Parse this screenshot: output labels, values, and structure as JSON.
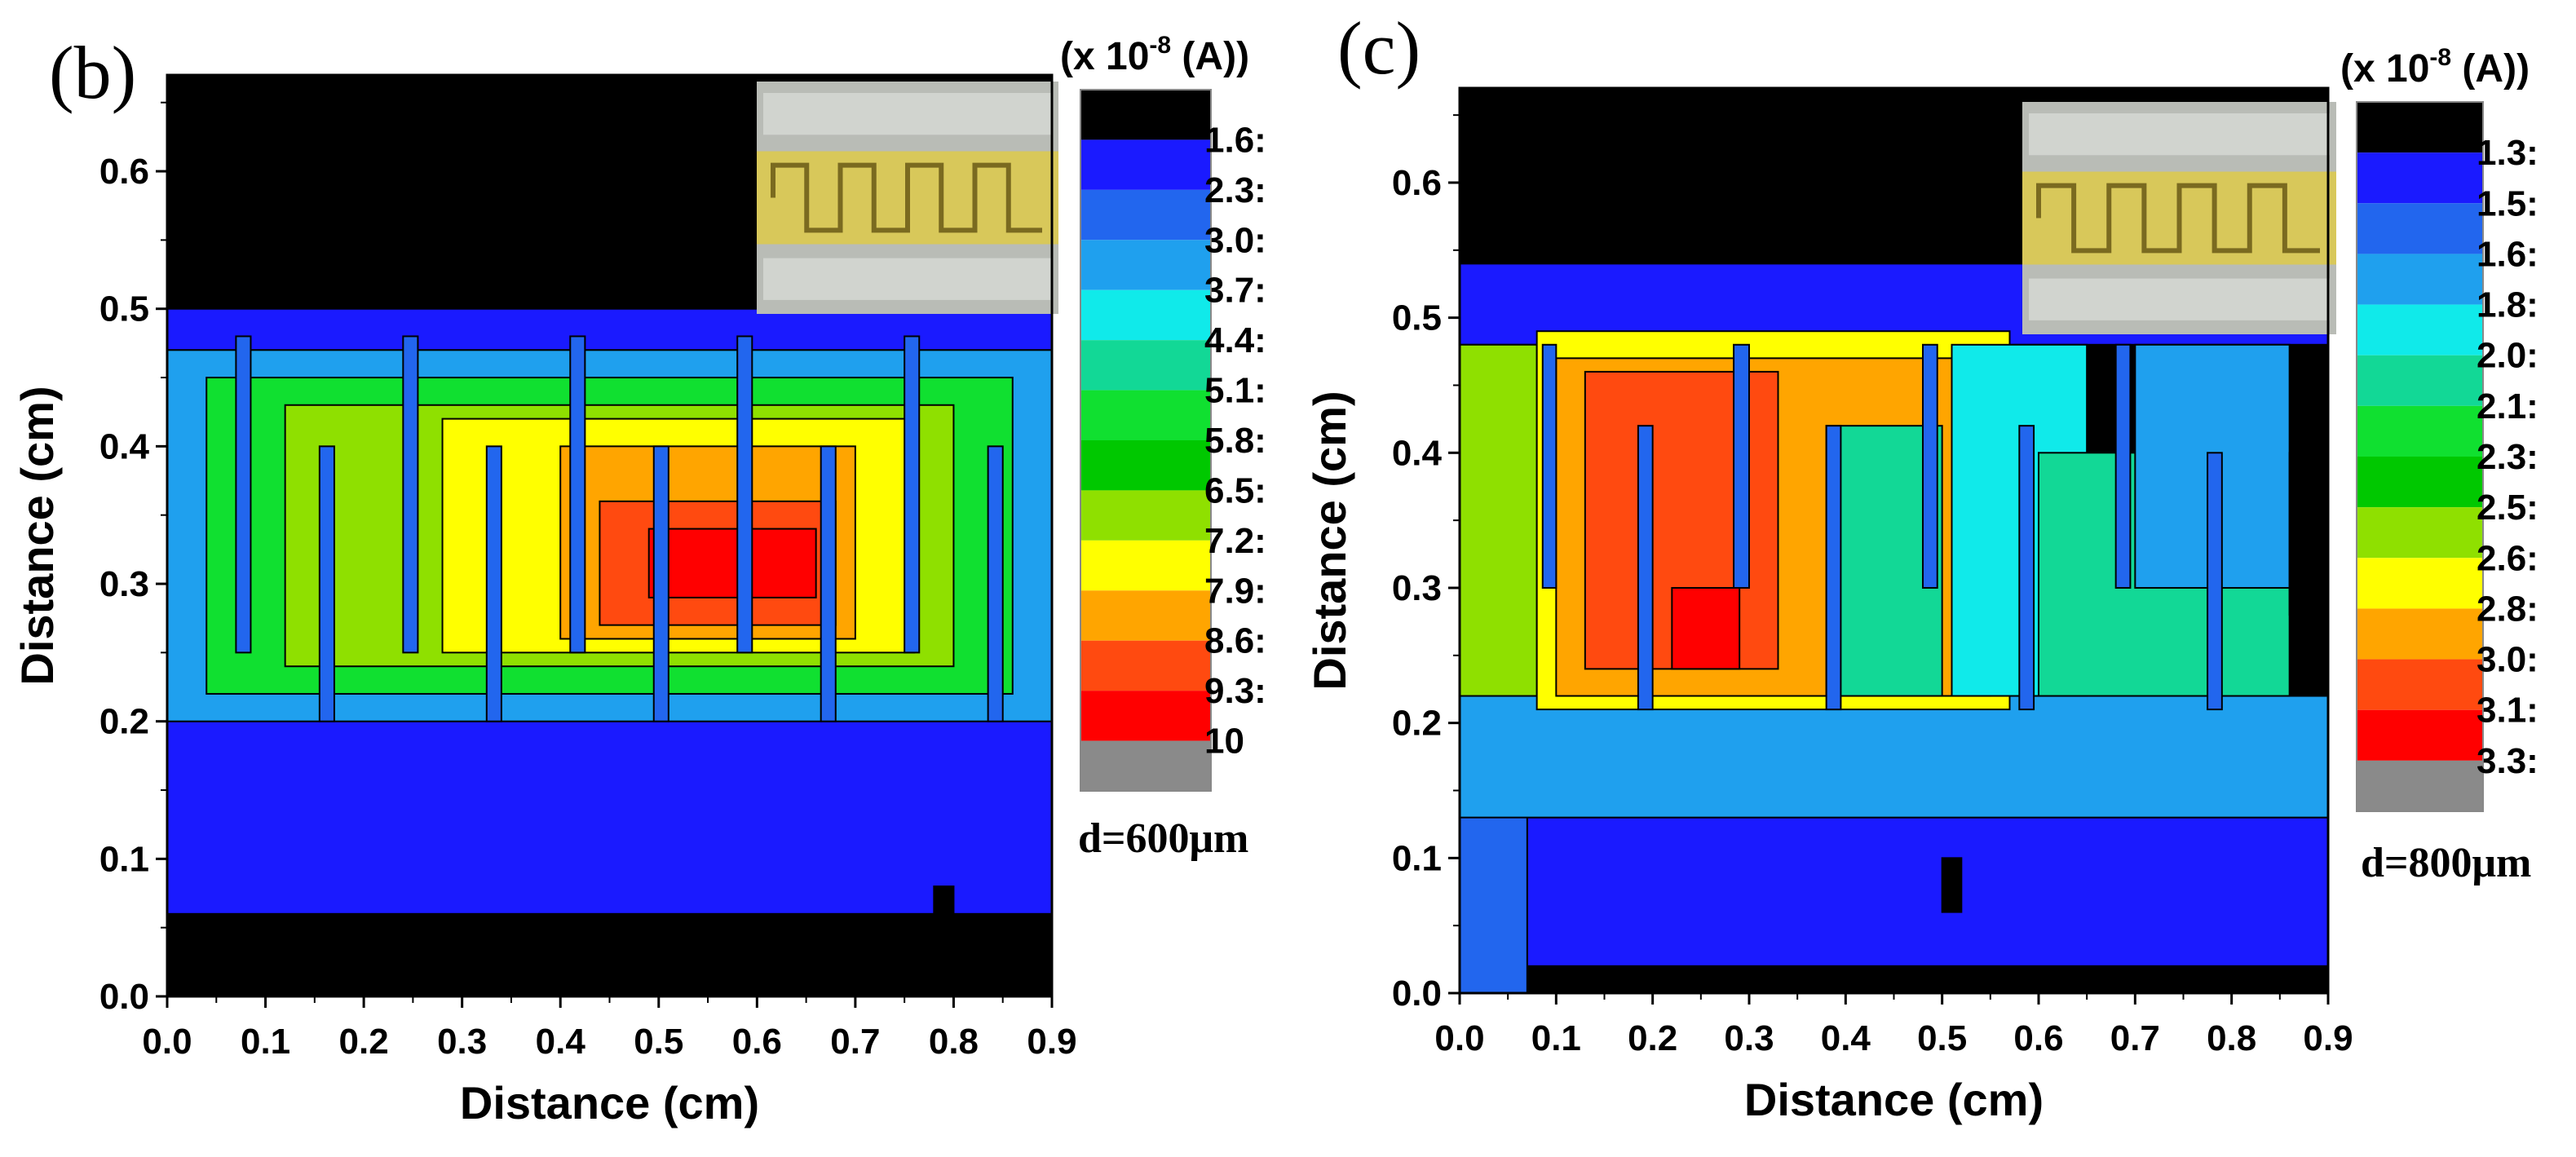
{
  "chart_data": [
    {
      "type": "heatmap",
      "panel_label": "(b)",
      "xlabel": "Distance (cm)",
      "ylabel": "Distance (cm)",
      "xlim": [
        0.0,
        0.9
      ],
      "ylim": [
        0.0,
        0.67
      ],
      "xticks": [
        "0.0",
        "0.1",
        "0.2",
        "0.3",
        "0.4",
        "0.5",
        "0.6",
        "0.7",
        "0.8",
        "0.9"
      ],
      "yticks": [
        "0.0",
        "0.1",
        "0.2",
        "0.3",
        "0.4",
        "0.5",
        "0.6"
      ],
      "colorbar_unit": "(x 10",
      "colorbar_exp": "-8",
      "colorbar_unit_end": " (A))",
      "colorbar_labels": [
        "1.6:",
        "2.3:",
        "3.0:",
        "3.7:",
        "4.4:",
        "5.1:",
        "5.8:",
        "6.5:",
        "7.2:",
        "7.9:",
        "8.6:",
        "9.3:",
        "10"
      ],
      "colorbar_colors": [
        "#000000",
        "#1a1aff",
        "#2266ee",
        "#1fa0ee",
        "#10eaea",
        "#12d896",
        "#10e030",
        "#00c800",
        "#8fe000",
        "#ffff00",
        "#ffa500",
        "#ff4a10",
        "#ff0000",
        "#8a8a8a"
      ],
      "annotation": "d=600μm",
      "regions": [
        {
          "x0": 0.0,
          "x1": 0.9,
          "y0": 0.0,
          "y1": 0.06,
          "level": 0
        },
        {
          "x0": 0.0,
          "x1": 0.9,
          "y0": 0.06,
          "y1": 0.2,
          "level": 1
        },
        {
          "x0": 0.0,
          "x1": 0.9,
          "y0": 0.5,
          "y1": 0.67,
          "level": 0
        },
        {
          "x0": 0.0,
          "x1": 0.9,
          "y0": 0.47,
          "y1": 0.5,
          "level": 1
        },
        {
          "x0": 0.0,
          "x1": 0.9,
          "y0": 0.2,
          "y1": 0.47,
          "level": 3
        },
        {
          "x0": 0.04,
          "x1": 0.86,
          "y0": 0.22,
          "y1": 0.45,
          "level": 6
        },
        {
          "x0": 0.12,
          "x1": 0.8,
          "y0": 0.24,
          "y1": 0.43,
          "level": 8
        },
        {
          "x0": 0.28,
          "x1": 0.76,
          "y0": 0.25,
          "y1": 0.42,
          "level": 9
        },
        {
          "x0": 0.4,
          "x1": 0.7,
          "y0": 0.26,
          "y1": 0.4,
          "level": 10
        },
        {
          "x0": 0.44,
          "x1": 0.68,
          "y0": 0.27,
          "y1": 0.36,
          "level": 11
        },
        {
          "x0": 0.49,
          "x1": 0.66,
          "y0": 0.29,
          "y1": 0.34,
          "level": 12
        },
        {
          "x0": 0.07,
          "x1": 0.085,
          "y0": 0.25,
          "y1": 0.48,
          "level": 2
        },
        {
          "x0": 0.155,
          "x1": 0.17,
          "y0": 0.2,
          "y1": 0.4,
          "level": 2
        },
        {
          "x0": 0.24,
          "x1": 0.255,
          "y0": 0.25,
          "y1": 0.48,
          "level": 2
        },
        {
          "x0": 0.325,
          "x1": 0.34,
          "y0": 0.2,
          "y1": 0.4,
          "level": 2
        },
        {
          "x0": 0.41,
          "x1": 0.425,
          "y0": 0.25,
          "y1": 0.48,
          "level": 2
        },
        {
          "x0": 0.495,
          "x1": 0.51,
          "y0": 0.2,
          "y1": 0.4,
          "level": 2
        },
        {
          "x0": 0.58,
          "x1": 0.595,
          "y0": 0.25,
          "y1": 0.48,
          "level": 2
        },
        {
          "x0": 0.665,
          "x1": 0.68,
          "y0": 0.2,
          "y1": 0.4,
          "level": 2
        },
        {
          "x0": 0.75,
          "x1": 0.765,
          "y0": 0.25,
          "y1": 0.48,
          "level": 2
        },
        {
          "x0": 0.835,
          "x1": 0.85,
          "y0": 0.2,
          "y1": 0.4,
          "level": 2
        },
        {
          "x0": 0.78,
          "x1": 0.8,
          "y0": 0.04,
          "y1": 0.08,
          "level": 0
        }
      ]
    },
    {
      "type": "heatmap",
      "panel_label": "(c)",
      "xlabel": "Distance (cm)",
      "ylabel": "Distance (cm)",
      "xlim": [
        0.0,
        0.9
      ],
      "ylim": [
        0.0,
        0.67
      ],
      "xticks": [
        "0.0",
        "0.1",
        "0.2",
        "0.3",
        "0.4",
        "0.5",
        "0.6",
        "0.7",
        "0.8",
        "0.9"
      ],
      "yticks": [
        "0.0",
        "0.1",
        "0.2",
        "0.3",
        "0.4",
        "0.5",
        "0.6"
      ],
      "colorbar_unit": "(x 10",
      "colorbar_exp": "-8",
      "colorbar_unit_end": " (A))",
      "colorbar_labels": [
        "1.3:",
        "1.5:",
        "1.6:",
        "1.8:",
        "2.0:",
        "2.1:",
        "2.3:",
        "2.5:",
        "2.6:",
        "2.8:",
        "3.0:",
        "3.1:",
        "3.3:"
      ],
      "colorbar_colors": [
        "#000000",
        "#1a1aff",
        "#2266ee",
        "#1fa0ee",
        "#10eaea",
        "#12d896",
        "#10e030",
        "#00c800",
        "#8fe000",
        "#ffff00",
        "#ffa500",
        "#ff4a10",
        "#ff0000",
        "#8a8a8a"
      ],
      "annotation": "d=800μm",
      "regions": [
        {
          "x0": 0.0,
          "x1": 0.9,
          "y0": 0.0,
          "y1": 0.67,
          "level": 0
        },
        {
          "x0": 0.07,
          "x1": 0.9,
          "y0": 0.02,
          "y1": 0.13,
          "level": 1
        },
        {
          "x0": 0.0,
          "x1": 0.07,
          "y0": 0.0,
          "y1": 0.2,
          "level": 2
        },
        {
          "x0": 0.0,
          "x1": 0.9,
          "y0": 0.13,
          "y1": 0.22,
          "level": 3
        },
        {
          "x0": 0.0,
          "x1": 0.9,
          "y0": 0.48,
          "y1": 0.54,
          "level": 1
        },
        {
          "x0": 0.0,
          "x1": 0.08,
          "y0": 0.22,
          "y1": 0.48,
          "level": 8
        },
        {
          "x0": 0.08,
          "x1": 0.57,
          "y0": 0.21,
          "y1": 0.49,
          "level": 9
        },
        {
          "x0": 0.1,
          "x1": 0.55,
          "y0": 0.22,
          "y1": 0.47,
          "level": 10
        },
        {
          "x0": 0.13,
          "x1": 0.33,
          "y0": 0.24,
          "y1": 0.46,
          "level": 11
        },
        {
          "x0": 0.22,
          "x1": 0.29,
          "y0": 0.24,
          "y1": 0.3,
          "level": 12
        },
        {
          "x0": 0.38,
          "x1": 0.5,
          "y0": 0.22,
          "y1": 0.42,
          "level": 5
        },
        {
          "x0": 0.51,
          "x1": 0.65,
          "y0": 0.22,
          "y1": 0.48,
          "level": 4
        },
        {
          "x0": 0.6,
          "x1": 0.86,
          "y0": 0.22,
          "y1": 0.4,
          "level": 5
        },
        {
          "x0": 0.7,
          "x1": 0.86,
          "y0": 0.3,
          "y1": 0.48,
          "level": 3
        },
        {
          "x0": 0.86,
          "x1": 0.9,
          "y0": 0.28,
          "y1": 0.4,
          "level": 0
        },
        {
          "x0": 0.086,
          "x1": 0.1,
          "y0": 0.3,
          "y1": 0.48,
          "level": 2
        },
        {
          "x0": 0.185,
          "x1": 0.2,
          "y0": 0.21,
          "y1": 0.42,
          "level": 2
        },
        {
          "x0": 0.284,
          "x1": 0.3,
          "y0": 0.3,
          "y1": 0.48,
          "level": 2
        },
        {
          "x0": 0.38,
          "x1": 0.395,
          "y0": 0.21,
          "y1": 0.42,
          "level": 2
        },
        {
          "x0": 0.48,
          "x1": 0.495,
          "y0": 0.3,
          "y1": 0.48,
          "level": 2
        },
        {
          "x0": 0.58,
          "x1": 0.595,
          "y0": 0.21,
          "y1": 0.42,
          "level": 2
        },
        {
          "x0": 0.68,
          "x1": 0.695,
          "y0": 0.3,
          "y1": 0.48,
          "level": 2
        },
        {
          "x0": 0.775,
          "x1": 0.79,
          "y0": 0.21,
          "y1": 0.4,
          "level": 2
        },
        {
          "x0": 0.5,
          "x1": 0.52,
          "y0": 0.06,
          "y1": 0.1,
          "level": 0
        }
      ]
    }
  ]
}
